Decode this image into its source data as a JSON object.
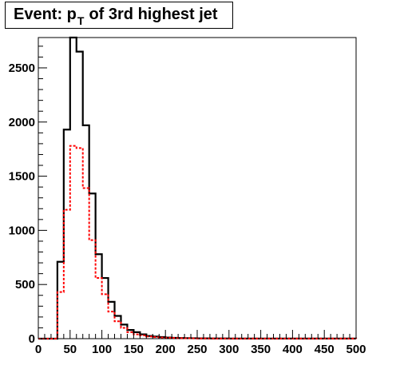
{
  "title": {
    "prefix": "Event: p",
    "subscript": "T",
    "suffix": "of 3rd highest jet"
  },
  "chart_data": {
    "type": "histogram",
    "title": "Event: p_T of 3rd highest jet",
    "xlabel": "",
    "ylabel": "",
    "xlim": [
      0,
      500
    ],
    "ylim": [
      0,
      2780
    ],
    "bin_width": 10,
    "x_ticks": [
      0,
      50,
      100,
      150,
      200,
      250,
      300,
      350,
      400,
      450,
      500
    ],
    "y_ticks": [
      0,
      500,
      1000,
      1500,
      2000,
      2500
    ],
    "grid": false,
    "legend": "none",
    "series": [
      {
        "style": "solid",
        "color": "#000000",
        "values": [
          0,
          0,
          0,
          710,
          1930,
          2780,
          2650,
          1970,
          1340,
          780,
          560,
          340,
          210,
          130,
          80,
          60,
          40,
          25,
          20,
          15,
          10,
          8,
          6,
          5,
          4,
          3,
          3,
          2,
          2,
          2,
          1,
          1,
          1,
          1,
          1,
          1,
          1,
          1,
          1,
          1,
          1,
          1,
          1,
          1,
          1,
          1,
          1,
          1,
          1,
          1
        ]
      },
      {
        "style": "dashed",
        "color": "#ff0000",
        "values": [
          0,
          0,
          0,
          430,
          1190,
          1780,
          1760,
          1390,
          910,
          560,
          410,
          250,
          160,
          100,
          60,
          40,
          30,
          20,
          15,
          10,
          8,
          6,
          5,
          4,
          3,
          2,
          2,
          2,
          1,
          1,
          1,
          1,
          1,
          1,
          1,
          1,
          1,
          1,
          1,
          1,
          1,
          1,
          1,
          1,
          1,
          1,
          1,
          1,
          1,
          1
        ]
      }
    ]
  }
}
